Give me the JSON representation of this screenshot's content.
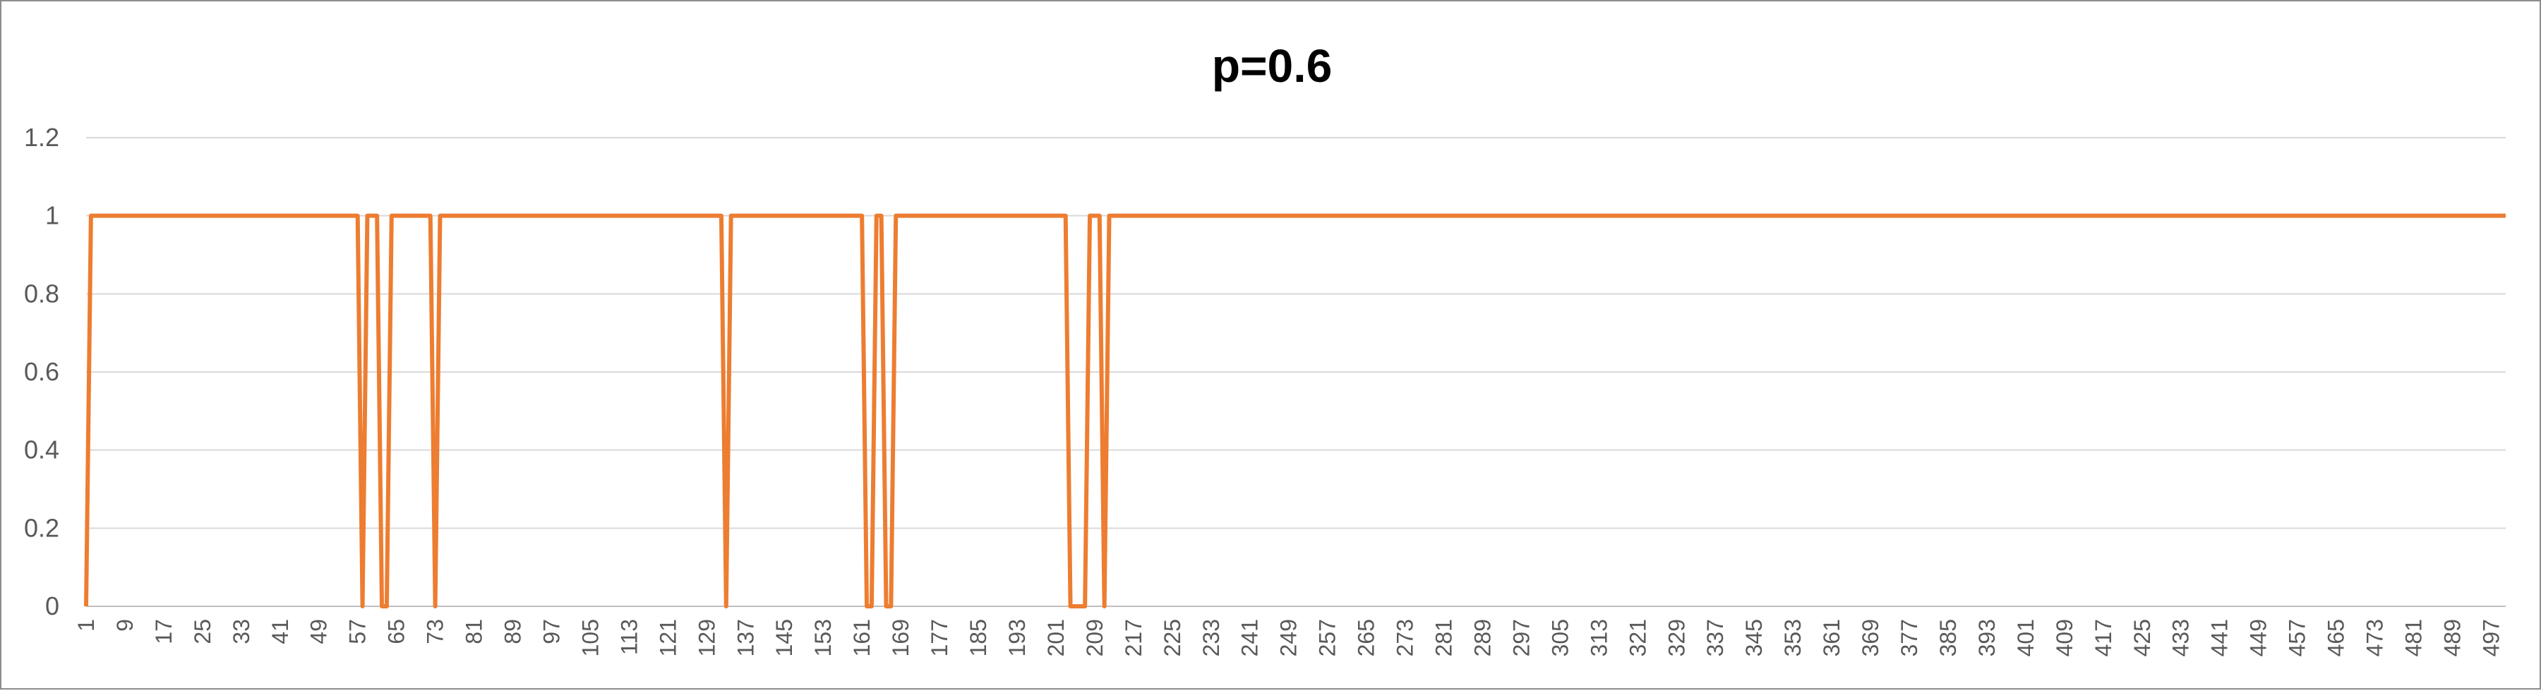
{
  "chart_data": {
    "type": "line",
    "title": "p=0.6",
    "xlabel": "",
    "ylabel": "",
    "x_range": [
      1,
      500
    ],
    "ylim": [
      0,
      1.2
    ],
    "y_ticks": [
      "0",
      "0.2",
      "0.4",
      "0.6",
      "0.8",
      "1",
      "1.2"
    ],
    "x_tick_start": 1,
    "x_tick_step": 8,
    "x_tick_count": 63,
    "grid": true,
    "legend": "none",
    "series": [
      {
        "color": "#ED7D31",
        "points": [
          [
            1,
            0
          ],
          [
            2,
            1
          ],
          [
            57,
            1
          ],
          [
            58,
            0
          ],
          [
            59,
            1
          ],
          [
            61,
            1
          ],
          [
            62,
            0
          ],
          [
            63,
            0
          ],
          [
            64,
            1
          ],
          [
            72,
            1
          ],
          [
            73,
            0
          ],
          [
            74,
            1
          ],
          [
            132,
            1
          ],
          [
            133,
            0
          ],
          [
            134,
            1
          ],
          [
            161,
            1
          ],
          [
            162,
            0
          ],
          [
            163,
            0
          ],
          [
            164,
            1
          ],
          [
            165,
            1
          ],
          [
            166,
            0
          ],
          [
            167,
            0
          ],
          [
            168,
            1
          ],
          [
            203,
            1
          ],
          [
            204,
            0
          ],
          [
            207,
            0
          ],
          [
            208,
            1
          ],
          [
            210,
            1
          ],
          [
            211,
            0
          ],
          [
            212,
            1
          ],
          [
            500,
            1
          ]
        ]
      }
    ]
  }
}
